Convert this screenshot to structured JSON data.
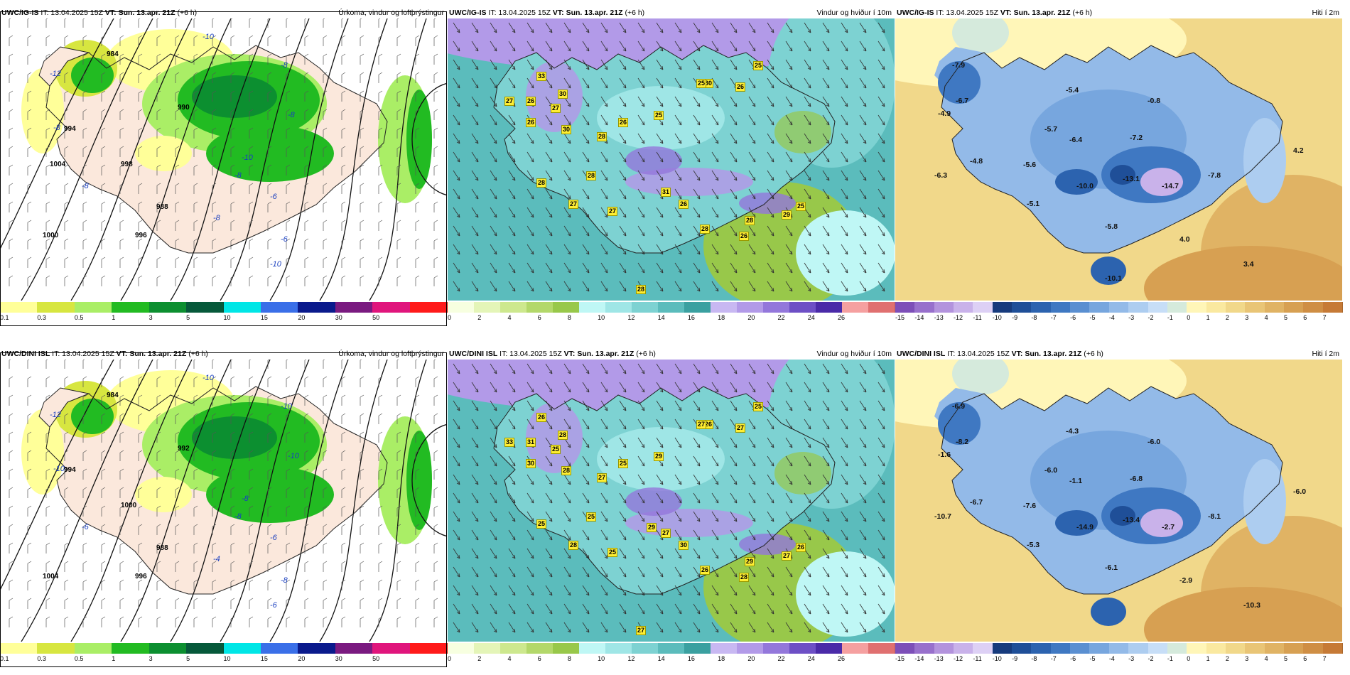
{
  "rows": [
    {
      "model": "UWC/IG-IS",
      "panels": [
        {
          "issue": "IT: 13.04.2025 15Z",
          "valid": "VT: Sun. 13.apr. 21Z",
          "lead": "(+6 h)",
          "title": "Úrkoma, vindur og loftþrýstingur"
        },
        {
          "issue": "IT: 13.04.2025 15Z",
          "valid": "VT: Sun. 13.apr. 21Z",
          "lead": "(+6 h)",
          "title": "Vindur og hviður í 10m"
        },
        {
          "issue": "IT: 13.04.2025 15Z",
          "valid": "VT: Sun. 13.apr. 21Z",
          "lead": "(+6 h)",
          "title": "Hiti í 2m"
        }
      ],
      "precip_labels": [
        "-10",
        "-12",
        "-8",
        "-8",
        "-8",
        "-10",
        "-8",
        "-6",
        "-6",
        "-8",
        "-8",
        "-10"
      ],
      "isobar_labels": [
        "984",
        "988",
        "990",
        "994",
        "996",
        "998",
        "1000",
        "1004"
      ],
      "gust_labels": [
        "33",
        "27",
        "26",
        "30",
        "26",
        "30",
        "27",
        "28",
        "26",
        "25",
        "30",
        "26",
        "28",
        "28",
        "27",
        "31",
        "26",
        "28",
        "26",
        "25",
        "28",
        "29",
        "25",
        "27",
        "28",
        "25"
      ],
      "temp_labels": [
        "-7.9",
        "-6.7",
        "-4.9",
        "-5.4",
        "-0.8",
        "-5.7",
        "-6.4",
        "-7.2",
        "4.2",
        "-5.6",
        "-4.8",
        "-6.3",
        "-13.1",
        "-10.0",
        "-7.8",
        "-14.7",
        "-5.1",
        "-5.8",
        "4.0",
        "3.4",
        "-10.1"
      ]
    },
    {
      "model": "UWC/DINI ISL",
      "panels": [
        {
          "issue": "IT: 13.04.2025 15Z",
          "valid": "VT: Sun. 13.apr. 21Z",
          "lead": "(+6 h)",
          "title": "Úrkoma, vindur og loftþrýstingur"
        },
        {
          "issue": "IT: 13.04.2025 15Z",
          "valid": "VT: Sun. 13.apr. 21Z",
          "lead": "(+6 h)",
          "title": "Vindur og hviður í 10m"
        },
        {
          "issue": "IT: 13.04.2025 15Z",
          "valid": "VT: Sun. 13.apr. 21Z",
          "lead": "(+6 h)",
          "title": "Hiti í 2m"
        }
      ],
      "precip_labels": [
        "-10",
        "-12",
        "-10",
        "-10",
        "-10",
        "-8",
        "-8",
        "-6",
        "-8",
        "-6",
        "-4",
        "-6"
      ],
      "isobar_labels": [
        "984",
        "988",
        "992",
        "994",
        "996",
        "1000",
        "1004"
      ],
      "gust_labels": [
        "26",
        "33",
        "31",
        "28",
        "30",
        "28",
        "25",
        "27",
        "25",
        "29",
        "26",
        "27",
        "25",
        "25",
        "28",
        "27",
        "30",
        "26",
        "28",
        "27",
        "29",
        "27",
        "26",
        "25",
        "27",
        "25",
        "29"
      ],
      "temp_labels": [
        "-6.9",
        "-8.2",
        "-1.6",
        "-4.3",
        "-6.0",
        "-6.0",
        "-1.1",
        "-6.8",
        "-6.0",
        "-7.6",
        "-6.7",
        "-10.7",
        "-13.4",
        "-14.9",
        "-8.1",
        "-2.7",
        "-5.3",
        "-6.1",
        "-2.9",
        "-10.3"
      ]
    }
  ],
  "colorbars": {
    "precip": {
      "ticks": [
        "0.1",
        "0.3",
        "0.5",
        "1",
        "3",
        "5",
        "10",
        "15",
        "20",
        "30",
        "50"
      ],
      "colors": [
        "#ffff99",
        "#d7e640",
        "#aaee66",
        "#22bb22",
        "#0c8f30",
        "#06593a",
        "#00e6e6",
        "#3a6fe8",
        "#0a1a8c",
        "#7a1a80",
        "#e0157c",
        "#ff1a1a"
      ]
    },
    "wind": {
      "ticks": [
        "0",
        "2",
        "4",
        "6",
        "8",
        "10",
        "12",
        "14",
        "16",
        "18",
        "20",
        "22",
        "24",
        "26"
      ],
      "colors": [
        "#f7ffe0",
        "#e4f5b8",
        "#cde88e",
        "#b3d86a",
        "#98c84a",
        "#bff7f5",
        "#9fe6e6",
        "#7dd2d2",
        "#5bbcbc",
        "#3aa0a0",
        "#c8b8f2",
        "#b29ae8",
        "#9377db",
        "#6d4fc5",
        "#4a2aa8",
        "#f5a0a0",
        "#e07070"
      ]
    },
    "temp": {
      "ticks": [
        "-15",
        "-14",
        "-13",
        "-12",
        "-11",
        "-10",
        "-9",
        "-8",
        "-7",
        "-6",
        "-5",
        "-4",
        "-3",
        "-2",
        "-1",
        "0",
        "1",
        "2",
        "3",
        "4",
        "5",
        "6",
        "7"
      ],
      "colors": [
        "#7d4fb8",
        "#9870cc",
        "#b393dd",
        "#c9b2ea",
        "#ddd0f5",
        "#173b7d",
        "#1f4f98",
        "#2c63af",
        "#3f78c2",
        "#5a8fd1",
        "#77a6de",
        "#93bae8",
        "#adcdf0",
        "#c7def7",
        "#d5eadc",
        "#fff6b8",
        "#fae9a0",
        "#f1d88a",
        "#e9c576",
        "#e0b364",
        "#d7a052",
        "#cf8e44",
        "#c67a36"
      ]
    }
  }
}
